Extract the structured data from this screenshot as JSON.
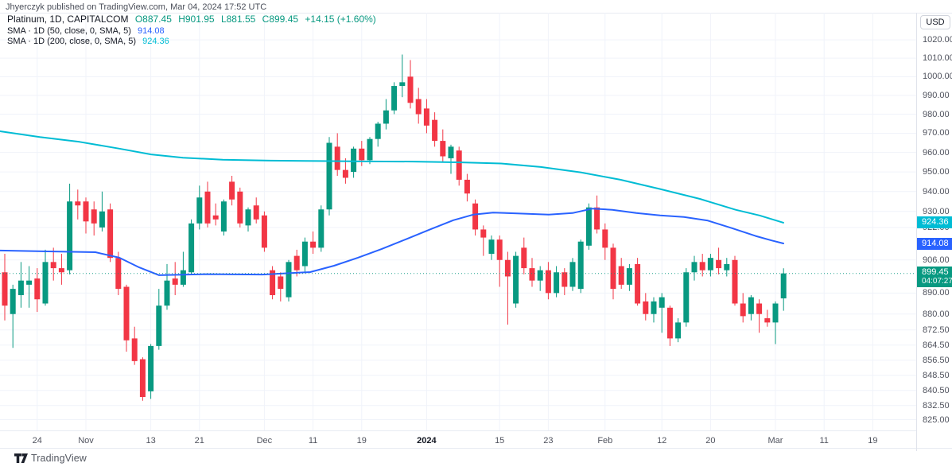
{
  "header": {
    "byline": "Jhyerczyk published on TradingView.com, Mar 04, 2024 17:52 UTC"
  },
  "legend": {
    "symbol_title": "Platinum, 1D, CAPITALCOM",
    "ohlc": [
      "O887.45",
      "H901.95",
      "L881.55",
      "C899.45",
      "+14.15 (+1.60%)"
    ],
    "sma50_label": "SMA · 1D (50, close, 0, SMA, 5)",
    "sma50_value": "914.08",
    "sma200_label": "SMA · 1D (200, close, 0, SMA, 5)",
    "sma200_value": "924.36"
  },
  "price_scale": {
    "currency_button": "USD",
    "sma200_label_value": "924.36",
    "sma50_label_value": "914.08",
    "last_price": "899.45",
    "countdown": "04:07:27"
  },
  "footer": {
    "logo_text": "TradingView"
  },
  "colors": {
    "up": "#089981",
    "down": "#f23645",
    "sma50": "#2962ff",
    "sma200": "#00bcd4",
    "grid": "#f0f3fa",
    "axis_text": "#50535e",
    "price_line": "#089981"
  },
  "chart_data": {
    "type": "candlestick",
    "title": "Platinum, 1D, CAPITALCOM",
    "interval": "1D",
    "legend_position": "top-left",
    "grid": true,
    "y_axis_currency": "USD",
    "y_ticks": [
      {
        "label": "1020.00",
        "price": 1020
      },
      {
        "label": "1010.00",
        "price": 1010
      },
      {
        "label": "1000.00",
        "price": 1000
      },
      {
        "label": "990.00",
        "price": 990
      },
      {
        "label": "980.00",
        "price": 980
      },
      {
        "label": "970.00",
        "price": 970
      },
      {
        "label": "960.00",
        "price": 960
      },
      {
        "label": "950.00",
        "price": 950
      },
      {
        "label": "940.00",
        "price": 940
      },
      {
        "label": "930.00",
        "price": 930
      },
      {
        "label": "922.00",
        "price": 922
      },
      {
        "label": "906.00",
        "price": 906
      },
      {
        "label": "890.00",
        "price": 890
      },
      {
        "label": "880.00",
        "price": 880
      },
      {
        "label": "872.50",
        "price": 872.5
      },
      {
        "label": "864.50",
        "price": 864.5
      },
      {
        "label": "856.50",
        "price": 856.5
      },
      {
        "label": "848.50",
        "price": 848.5
      },
      {
        "label": "840.50",
        "price": 840.5
      },
      {
        "label": "832.50",
        "price": 832.5
      },
      {
        "label": "825.00",
        "price": 825
      }
    ],
    "x_labels": [
      {
        "text": "24",
        "index": 4
      },
      {
        "text": "Nov",
        "index": 10
      },
      {
        "text": "13",
        "index": 18
      },
      {
        "text": "21",
        "index": 24
      },
      {
        "text": "Dec",
        "index": 32
      },
      {
        "text": "11",
        "index": 38
      },
      {
        "text": "19",
        "index": 44
      },
      {
        "text": "2024",
        "index": 52,
        "bold": true
      },
      {
        "text": "15",
        "index": 61
      },
      {
        "text": "23",
        "index": 67
      },
      {
        "text": "Feb",
        "index": 74
      },
      {
        "text": "12",
        "index": 81
      },
      {
        "text": "20",
        "index": 87
      },
      {
        "text": "Mar",
        "index": 95
      },
      {
        "text": "11",
        "index": 101
      },
      {
        "text": "19",
        "index": 107
      }
    ],
    "last_price": 899.45,
    "sma50_current": 914.08,
    "sma200_current": 924.36,
    "ohlc": [
      [
        "2023-10-18",
        900,
        909,
        877,
        884
      ],
      [
        "2023-10-19",
        880,
        894,
        863,
        892
      ],
      [
        "2023-10-20",
        889,
        905,
        883,
        896
      ],
      [
        "2023-10-23",
        894,
        903,
        883,
        896
      ],
      [
        "2023-10-24",
        897,
        902,
        881,
        887
      ],
      [
        "2023-10-25",
        885,
        911,
        884,
        905
      ],
      [
        "2023-10-26",
        905,
        912,
        896,
        902
      ],
      [
        "2023-10-27",
        902,
        909,
        894,
        900
      ],
      [
        "2023-10-30",
        901,
        944,
        899,
        935
      ],
      [
        "2023-10-31",
        935,
        941,
        926,
        933
      ],
      [
        "2023-11-01",
        935,
        937,
        919,
        925
      ],
      [
        "2023-11-02",
        931,
        935,
        918,
        924
      ],
      [
        "2023-11-03",
        922,
        940,
        920,
        930
      ],
      [
        "2023-11-06",
        931,
        934,
        905,
        907
      ],
      [
        "2023-11-07",
        907,
        910,
        889,
        892
      ],
      [
        "2023-11-08",
        893,
        894,
        861,
        867
      ],
      [
        "2023-11-09",
        868,
        874,
        854,
        856
      ],
      [
        "2023-11-10",
        857,
        858,
        835,
        837
      ],
      [
        "2023-11-13",
        840,
        865,
        836,
        864
      ],
      [
        "2023-11-14",
        864,
        892,
        862,
        884
      ],
      [
        "2023-11-15",
        884,
        904,
        882,
        896
      ],
      [
        "2023-11-16",
        897,
        905,
        889,
        894
      ],
      [
        "2023-11-17",
        894,
        910,
        893,
        901
      ],
      [
        "2023-11-20",
        900,
        926,
        899,
        924
      ],
      [
        "2023-11-21",
        924,
        943,
        921,
        937
      ],
      [
        "2023-11-22",
        940,
        945,
        922,
        924
      ],
      [
        "2023-11-23",
        928,
        934,
        923,
        926
      ],
      [
        "2023-11-24",
        920,
        936,
        918,
        935
      ],
      [
        "2023-11-27",
        945,
        948,
        933,
        936
      ],
      [
        "2023-11-28",
        940,
        942,
        922,
        924
      ],
      [
        "2023-11-29",
        923,
        932,
        920,
        931
      ],
      [
        "2023-11-30",
        933,
        937,
        924,
        926
      ],
      [
        "2023-12-01",
        928,
        930,
        910,
        912
      ],
      [
        "2023-12-04",
        901,
        903,
        887,
        889
      ],
      [
        "2023-12-05",
        898,
        900,
        886,
        892
      ],
      [
        "2023-12-06",
        888,
        906,
        886,
        905
      ],
      [
        "2023-12-07",
        908,
        911,
        898,
        901
      ],
      [
        "2023-12-08",
        903,
        917,
        900,
        915
      ],
      [
        "2023-12-11",
        915,
        920,
        909,
        912
      ],
      [
        "2023-12-12",
        912,
        933,
        910,
        931
      ],
      [
        "2023-12-13",
        931,
        968,
        928,
        965
      ],
      [
        "2023-12-14",
        963,
        970,
        948,
        951
      ],
      [
        "2023-12-15",
        951,
        957,
        944,
        947
      ],
      [
        "2023-12-18",
        950,
        963,
        947,
        962
      ],
      [
        "2023-12-19",
        962,
        966,
        953,
        956
      ],
      [
        "2023-12-20",
        956,
        968,
        954,
        967
      ],
      [
        "2023-12-21",
        967,
        976,
        963,
        975
      ],
      [
        "2023-12-22",
        975,
        988,
        972,
        982
      ],
      [
        "2023-12-26",
        982,
        997,
        980,
        995
      ],
      [
        "2023-12-27",
        995,
        1012,
        989,
        997
      ],
      [
        "2023-12-28",
        1000,
        1009,
        983,
        986
      ],
      [
        "2023-12-29",
        988,
        994,
        975,
        980
      ],
      [
        "2024-01-02",
        983,
        988,
        970,
        974
      ],
      [
        "2024-01-03",
        977,
        981,
        963,
        966
      ],
      [
        "2024-01-04",
        966,
        972,
        955,
        958
      ],
      [
        "2024-01-05",
        957,
        964,
        949,
        963
      ],
      [
        "2024-01-08",
        961,
        963,
        943,
        946
      ],
      [
        "2024-01-09",
        946,
        949,
        935,
        939
      ],
      [
        "2024-01-10",
        934,
        936,
        918,
        921
      ],
      [
        "2024-01-11",
        921,
        923,
        908,
        917
      ],
      [
        "2024-01-12",
        909,
        918,
        906,
        916
      ],
      [
        "2024-01-15",
        916,
        918,
        893,
        906
      ],
      [
        "2024-01-16",
        906,
        910,
        875,
        898
      ],
      [
        "2024-01-17",
        885,
        910,
        883,
        908
      ],
      [
        "2024-01-18",
        912,
        917,
        899,
        902
      ],
      [
        "2024-01-19",
        902,
        907,
        893,
        896
      ],
      [
        "2024-01-22",
        896,
        903,
        891,
        901
      ],
      [
        "2024-01-23",
        901,
        905,
        887,
        890
      ],
      [
        "2024-01-24",
        890,
        903,
        888,
        900
      ],
      [
        "2024-01-25",
        900,
        902,
        889,
        893
      ],
      [
        "2024-01-26",
        893,
        907,
        891,
        905
      ],
      [
        "2024-01-29",
        892,
        916,
        890,
        915
      ],
      [
        "2024-01-30",
        913,
        934,
        911,
        932
      ],
      [
        "2024-01-31",
        932,
        938,
        919,
        921
      ],
      [
        "2024-02-01",
        921,
        924,
        906,
        912
      ],
      [
        "2024-02-02",
        912,
        914,
        887,
        892
      ],
      [
        "2024-02-05",
        903,
        907,
        892,
        894
      ],
      [
        "2024-02-06",
        894,
        904,
        891,
        902
      ],
      [
        "2024-02-07",
        904,
        907,
        884,
        885
      ],
      [
        "2024-02-08",
        886,
        890,
        877,
        880
      ],
      [
        "2024-02-09",
        880,
        888,
        876,
        886
      ],
      [
        "2024-02-12",
        883,
        890,
        871,
        888
      ],
      [
        "2024-02-13",
        883,
        884,
        864,
        868
      ],
      [
        "2024-02-14",
        868,
        878,
        866,
        876
      ],
      [
        "2024-02-15",
        876,
        902,
        874,
        900
      ],
      [
        "2024-02-16",
        900,
        908,
        896,
        905
      ],
      [
        "2024-02-19",
        905,
        909,
        898,
        901
      ],
      [
        "2024-02-20",
        901,
        909,
        898,
        907
      ],
      [
        "2024-02-21",
        906,
        912,
        899,
        902
      ],
      [
        "2024-02-22",
        901,
        907,
        898,
        904
      ],
      [
        "2024-02-23",
        906,
        908,
        884,
        885
      ],
      [
        "2024-02-26",
        885,
        890,
        876,
        879
      ],
      [
        "2024-02-27",
        880,
        889,
        877,
        888
      ],
      [
        "2024-02-28",
        885,
        887,
        871,
        880
      ],
      [
        "2024-02-29",
        878,
        882,
        874,
        876
      ],
      [
        "2024-03-01",
        876,
        886,
        865,
        885
      ],
      [
        "2024-03-04",
        887.45,
        901.95,
        881.55,
        899.45
      ]
    ],
    "sma50_points": [
      [
        0,
        910.6
      ],
      [
        60,
        910.2
      ],
      [
        120,
        909.8
      ],
      [
        150,
        907.1
      ],
      [
        175,
        902.4
      ],
      [
        200,
        898.6
      ],
      [
        260,
        899.1
      ],
      [
        330,
        898.9
      ],
      [
        390,
        900.1
      ],
      [
        420,
        903.2
      ],
      [
        450,
        907.1
      ],
      [
        480,
        911.4
      ],
      [
        510,
        916.1
      ],
      [
        540,
        920.9
      ],
      [
        570,
        925.6
      ],
      [
        595,
        928.4
      ],
      [
        620,
        929.4
      ],
      [
        650,
        929
      ],
      [
        690,
        928.4
      ],
      [
        720,
        929.2
      ],
      [
        745,
        931.4
      ],
      [
        770,
        930.8
      ],
      [
        800,
        929.2
      ],
      [
        830,
        928
      ],
      [
        860,
        927.2
      ],
      [
        890,
        925.4
      ],
      [
        920,
        921.7
      ],
      [
        950,
        917.8
      ],
      [
        970,
        915.6
      ],
      [
        985,
        914.08
      ]
    ],
    "sma200_points": [
      [
        0,
        971
      ],
      [
        50,
        968
      ],
      [
        100,
        965.5
      ],
      [
        150,
        962
      ],
      [
        190,
        959
      ],
      [
        230,
        957.3
      ],
      [
        280,
        956.3
      ],
      [
        340,
        955.8
      ],
      [
        400,
        955.6
      ],
      [
        460,
        955.4
      ],
      [
        520,
        955.3
      ],
      [
        580,
        954.9
      ],
      [
        630,
        954.3
      ],
      [
        680,
        952.5
      ],
      [
        730,
        949.8
      ],
      [
        780,
        946
      ],
      [
        830,
        941.3
      ],
      [
        880,
        936.3
      ],
      [
        925,
        930.8
      ],
      [
        955,
        928
      ],
      [
        985,
        924.36
      ]
    ]
  }
}
